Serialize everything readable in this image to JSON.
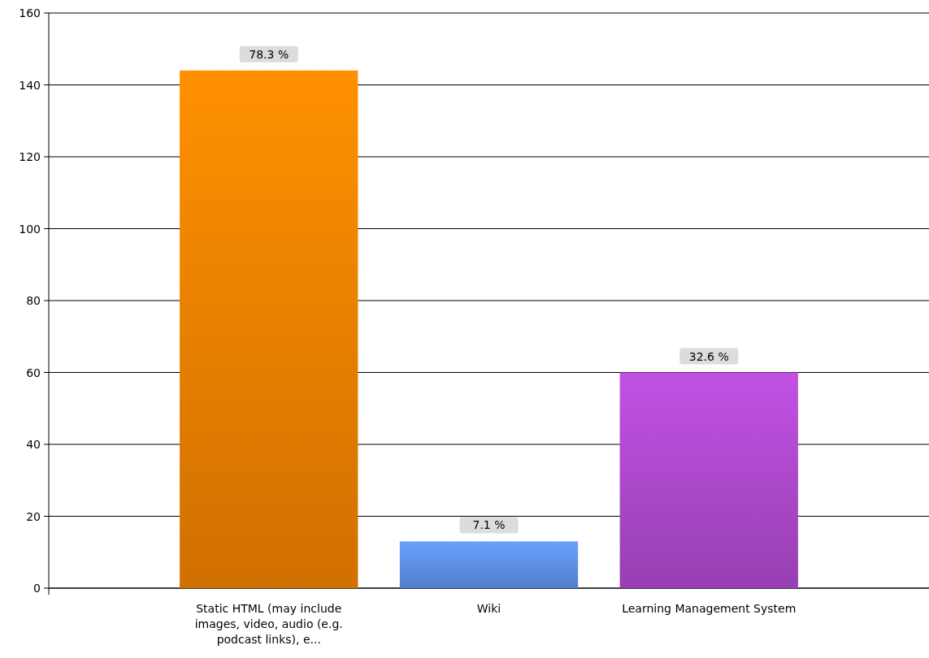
{
  "chart_data": {
    "type": "bar",
    "categories": [
      "Static HTML (may include images, video, audio (e.g. podcast links), e...",
      "Wiki",
      "Learning Management System"
    ],
    "values": [
      144,
      13,
      60
    ],
    "colors": [
      "#e87d00",
      "#5a8ce0",
      "#a846c6"
    ],
    "annotations": [
      {
        "text": "78.3 %",
        "x": "Static HTML (may include images, video, audio (e.g. podcast links), e...",
        "y": 144
      },
      {
        "text": "7.1 %",
        "x": "Wiki",
        "y": 13
      },
      {
        "text": "32.6 %",
        "x": "Learning Management System",
        "y": 60
      }
    ],
    "ylim": [
      0,
      160
    ],
    "yticks": [
      0,
      20,
      40,
      60,
      80,
      100,
      120,
      140,
      160
    ],
    "grid": "y"
  }
}
